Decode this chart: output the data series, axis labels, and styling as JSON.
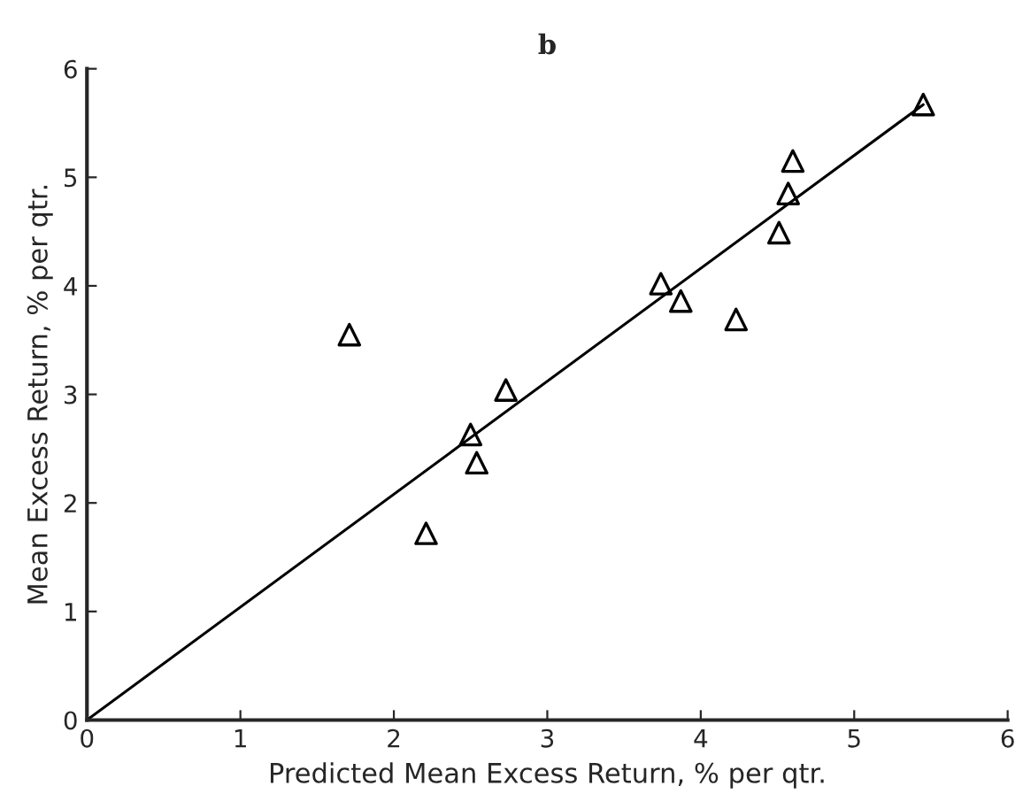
{
  "chart_data": {
    "type": "scatter",
    "title": "b",
    "xlabel": "Predicted Mean Excess Return, % per qtr.",
    "ylabel": "Mean Excess Return, % per qtr.",
    "xlim": [
      0,
      6
    ],
    "ylim": [
      0,
      6
    ],
    "xticks": [
      0,
      1,
      2,
      3,
      4,
      5,
      6
    ],
    "yticks": [
      0,
      1,
      2,
      3,
      4,
      5,
      6
    ],
    "grid": false,
    "series": [
      {
        "color": "#000000",
        "marker": "triangle",
        "x": [
          1.71,
          2.73,
          2.5,
          2.54,
          2.21,
          5.45,
          4.6,
          4.57,
          4.51,
          3.74,
          3.87,
          4.23
        ],
        "values": [
          3.55,
          3.04,
          2.63,
          2.37,
          1.72,
          5.67,
          5.15,
          4.85,
          4.49,
          4.02,
          3.86,
          3.69
        ]
      },
      {
        "type": "line",
        "color": "#000000",
        "line_style": "solid",
        "x": [
          0,
          5.45
        ],
        "values": [
          0,
          5.67
        ]
      }
    ]
  }
}
